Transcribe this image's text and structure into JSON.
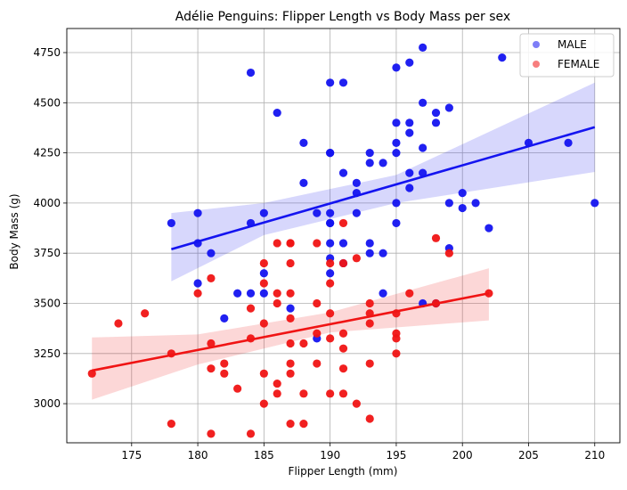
{
  "chart_data": {
    "type": "scatter",
    "title": "Adélie Penguins: Flipper Length vs Body Mass per sex",
    "xlabel": "Flipper Length (mm)",
    "ylabel": "Body Mass (g)",
    "xlim": [
      170.1,
      211.9
    ],
    "ylim": [
      2805,
      4870
    ],
    "xticks": [
      175,
      180,
      185,
      190,
      195,
      200,
      205,
      210
    ],
    "yticks": [
      3000,
      3250,
      3500,
      3750,
      4000,
      4250,
      4500,
      4750
    ],
    "grid": true,
    "legend_position": "top-right",
    "series": [
      {
        "name": "MALE",
        "color": "#1414f0",
        "points": [
          [
            178,
            3900
          ],
          [
            180,
            3950
          ],
          [
            180,
            3800
          ],
          [
            180,
            3600
          ],
          [
            181,
            3750
          ],
          [
            182,
            3425
          ],
          [
            183,
            3550
          ],
          [
            184,
            3550
          ],
          [
            184,
            3900
          ],
          [
            184,
            4650
          ],
          [
            185,
            3650
          ],
          [
            185,
            3550
          ],
          [
            185,
            3950
          ],
          [
            186,
            4450
          ],
          [
            187,
            3475
          ],
          [
            188,
            4300
          ],
          [
            188,
            4100
          ],
          [
            189,
            3950
          ],
          [
            189,
            3325
          ],
          [
            190,
            4600
          ],
          [
            190,
            4250
          ],
          [
            190,
            4250
          ],
          [
            190,
            3950
          ],
          [
            190,
            3900
          ],
          [
            190,
            3900
          ],
          [
            190,
            3800
          ],
          [
            190,
            3725
          ],
          [
            190,
            3650
          ],
          [
            191,
            4600
          ],
          [
            191,
            4150
          ],
          [
            191,
            3800
          ],
          [
            191,
            3700
          ],
          [
            192,
            4100
          ],
          [
            192,
            4050
          ],
          [
            192,
            3950
          ],
          [
            193,
            4250
          ],
          [
            193,
            4200
          ],
          [
            193,
            3800
          ],
          [
            193,
            3750
          ],
          [
            194,
            4200
          ],
          [
            194,
            3750
          ],
          [
            194,
            3550
          ],
          [
            195,
            4675
          ],
          [
            195,
            4400
          ],
          [
            195,
            4300
          ],
          [
            195,
            4250
          ],
          [
            195,
            4000
          ],
          [
            195,
            3900
          ],
          [
            196,
            4700
          ],
          [
            196,
            4400
          ],
          [
            196,
            4350
          ],
          [
            196,
            4150
          ],
          [
            196,
            4075
          ],
          [
            197,
            4775
          ],
          [
            197,
            4500
          ],
          [
            197,
            4275
          ],
          [
            197,
            4150
          ],
          [
            197,
            3500
          ],
          [
            198,
            4450
          ],
          [
            198,
            4400
          ],
          [
            198,
            3500
          ],
          [
            199,
            4475
          ],
          [
            199,
            4000
          ],
          [
            199,
            3775
          ],
          [
            200,
            4050
          ],
          [
            200,
            3975
          ],
          [
            201,
            4000
          ],
          [
            202,
            3875
          ],
          [
            203,
            4725
          ],
          [
            205,
            4300
          ],
          [
            208,
            4300
          ],
          [
            210,
            4000
          ]
        ],
        "trend": {
          "x0": 178,
          "y0": 3770,
          "x1": 210,
          "y1": 4378
        },
        "ci_band": {
          "x": [
            178,
            185,
            195,
            210
          ],
          "lower": [
            3610,
            3840,
            4000,
            4155
          ],
          "upper": [
            3950,
            4000,
            4140,
            4600
          ]
        }
      },
      {
        "name": "FEMALE",
        "color": "#f01414",
        "points": [
          [
            172,
            3150
          ],
          [
            174,
            3400
          ],
          [
            176,
            3450
          ],
          [
            178,
            3250
          ],
          [
            178,
            2900
          ],
          [
            180,
            3550
          ],
          [
            181,
            3625
          ],
          [
            181,
            3300
          ],
          [
            181,
            3175
          ],
          [
            181,
            2850
          ],
          [
            182,
            3200
          ],
          [
            182,
            3150
          ],
          [
            183,
            3075
          ],
          [
            184,
            3475
          ],
          [
            184,
            3325
          ],
          [
            184,
            2850
          ],
          [
            185,
            3700
          ],
          [
            185,
            3600
          ],
          [
            185,
            3400
          ],
          [
            185,
            3150
          ],
          [
            185,
            3000
          ],
          [
            186,
            3800
          ],
          [
            186,
            3550
          ],
          [
            186,
            3500
          ],
          [
            186,
            3100
          ],
          [
            186,
            3050
          ],
          [
            187,
            3800
          ],
          [
            187,
            3800
          ],
          [
            187,
            3700
          ],
          [
            187,
            3550
          ],
          [
            187,
            3425
          ],
          [
            187,
            3300
          ],
          [
            187,
            3200
          ],
          [
            187,
            3150
          ],
          [
            187,
            2900
          ],
          [
            188,
            3300
          ],
          [
            188,
            3050
          ],
          [
            188,
            2900
          ],
          [
            189,
            3800
          ],
          [
            189,
            3500
          ],
          [
            189,
            3350
          ],
          [
            189,
            3200
          ],
          [
            190,
            3700
          ],
          [
            190,
            3600
          ],
          [
            190,
            3450
          ],
          [
            190,
            3325
          ],
          [
            190,
            3050
          ],
          [
            191,
            3900
          ],
          [
            191,
            3700
          ],
          [
            191,
            3350
          ],
          [
            191,
            3275
          ],
          [
            191,
            3175
          ],
          [
            191,
            3050
          ],
          [
            192,
            3725
          ],
          [
            192,
            3000
          ],
          [
            193,
            3500
          ],
          [
            193,
            3450
          ],
          [
            193,
            3400
          ],
          [
            193,
            3200
          ],
          [
            193,
            2925
          ],
          [
            195,
            3450
          ],
          [
            195,
            3350
          ],
          [
            195,
            3325
          ],
          [
            195,
            3250
          ],
          [
            196,
            3550
          ],
          [
            198,
            3825
          ],
          [
            198,
            3500
          ],
          [
            199,
            3750
          ],
          [
            202,
            3550
          ]
        ],
        "trend": {
          "x0": 172,
          "y0": 3165,
          "x1": 202,
          "y1": 3550
        },
        "ci_band": {
          "x": [
            172,
            180,
            190,
            202
          ],
          "lower": [
            3020,
            3195,
            3355,
            3415
          ],
          "upper": [
            3330,
            3345,
            3455,
            3675
          ]
        }
      }
    ]
  }
}
